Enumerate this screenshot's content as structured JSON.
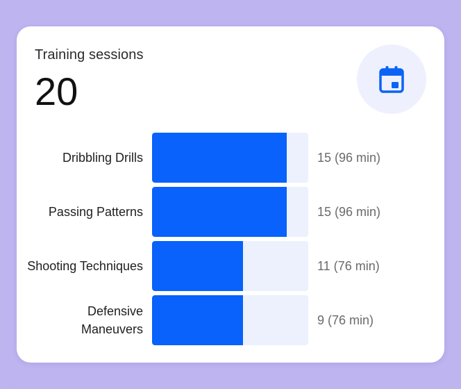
{
  "card": {
    "title": "Training sessions",
    "count": "20",
    "icon": "calendar-icon"
  },
  "colors": {
    "page_background": "#bdb4f0",
    "card_background": "#ffffff",
    "bar_fill": "#0862fb",
    "bar_track": "#edf1fd",
    "icon_color": "#0b63f6",
    "icon_badge": "#eef1fd"
  },
  "chart_data": {
    "type": "bar",
    "orientation": "horizontal",
    "categories": [
      "Dribbling Drills",
      "Passing Patterns",
      "Shooting Techniques",
      "Defensive Maneuvers"
    ],
    "values": [
      15,
      15,
      11,
      9
    ],
    "value_labels": [
      "15 (96 min)",
      "15 (96 min)",
      "11 (76 min)",
      "9 (76 min)"
    ],
    "fill_fraction": [
      0.86,
      0.86,
      0.58,
      0.58
    ]
  },
  "rows": [
    {
      "label": "Dribbling Drills",
      "value_text": "15 (96 min)"
    },
    {
      "label": "Passing Patterns",
      "value_text": "15 (96 min)"
    },
    {
      "label": "Shooting Techniques",
      "value_text": "11 (76 min)"
    },
    {
      "label": "Defensive Maneuvers",
      "value_text": "9 (76 min)"
    }
  ]
}
